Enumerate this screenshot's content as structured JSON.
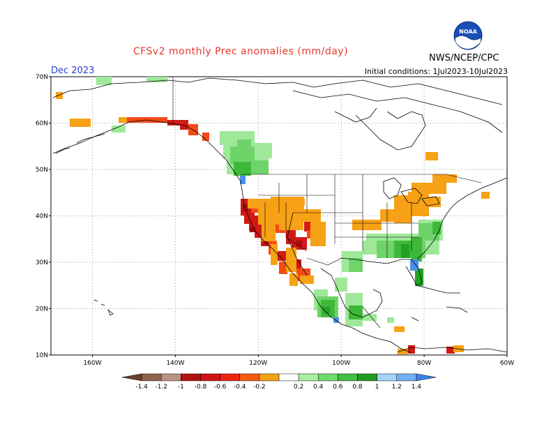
{
  "header": {
    "title": "CFSv2 monthly Prec anomalies (mm/day)",
    "month": "Dec 2023",
    "initial_conditions": "Initial conditions: 1Jul2023-10Jul2023",
    "agency": "NWS/NCEP/CPC",
    "logo_text": "NOAA"
  },
  "map": {
    "lon_range": [
      -170,
      -60
    ],
    "lat_range": [
      10,
      70
    ],
    "lat_labels": [
      "70N",
      "60N",
      "50N",
      "40N",
      "30N",
      "20N",
      "10N"
    ],
    "lon_labels": [
      "160W",
      "140W",
      "120W",
      "100W",
      "80W",
      "60W"
    ],
    "grid": "dotted",
    "colors": {
      "land_lines": "#000000",
      "neg_0.2_0.4": "#f7a116",
      "neg_0.4_0.6": "#f24b16",
      "neg_0.6_0.8": "#d01413",
      "neg_0.8_1.0": "#a80c0c",
      "pos_0.2_0.4": "#9fe89a",
      "pos_0.4_0.6": "#6ed46a",
      "pos_0.6_0.8": "#3fb83a",
      "pos_0.8_1.0": "#22a222",
      "pos_1.2_1.4": "#4a8fe8"
    }
  },
  "colorbar": {
    "labels": [
      "-1.4",
      "-1.2",
      "-1",
      "-0.8",
      "-0.6",
      "-0.4",
      "-0.2",
      "0.2",
      "0.4",
      "0.6",
      "0.8",
      "1",
      "1.2",
      "1.4"
    ],
    "colors": [
      "#6b3e2e",
      "#8f6250",
      "#b89283",
      "#b0130f",
      "#cf1414",
      "#ee2611",
      "#f45b12",
      "#f5a316",
      "#ffffff",
      "#a8f0a0",
      "#70db6a",
      "#40c040",
      "#229a22",
      "#a7d3f5",
      "#6fb1f1",
      "#3a82e8"
    ]
  }
}
